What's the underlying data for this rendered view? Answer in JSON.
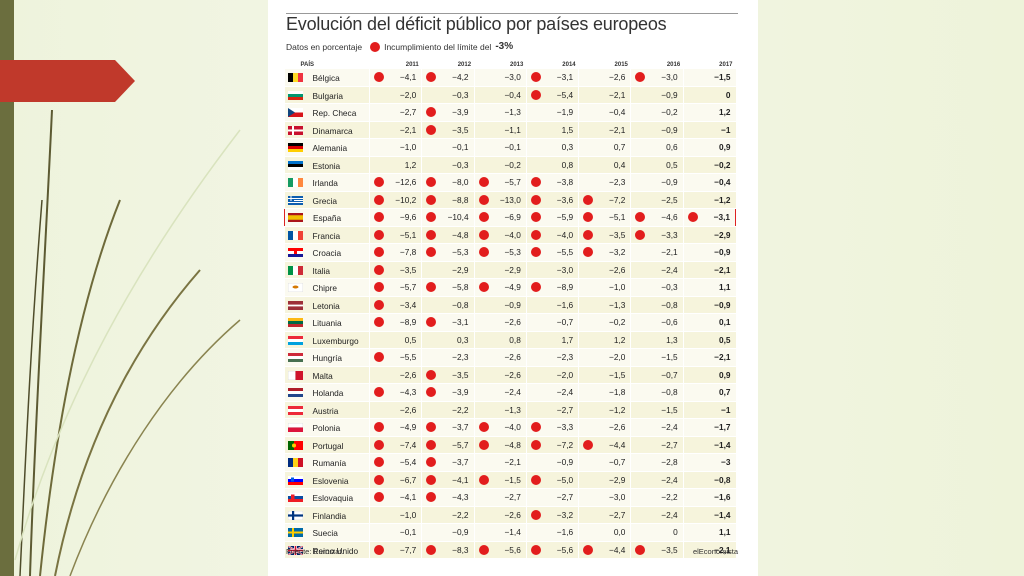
{
  "title": "Evolución del déficit público por países europeos",
  "legend": {
    "prefix": "Datos en porcentaje",
    "label": "Incumplimiento del límite del",
    "value": "-3%",
    "dot_color": "#e21d1d"
  },
  "columns": [
    "PAÍS",
    "2011",
    "2012",
    "2013",
    "2014",
    "2015",
    "2016",
    "2017"
  ],
  "rows": [
    {
      "country": "Bélgica",
      "flag": "be",
      "values": [
        "−4,1",
        "−4,2",
        "−3,0",
        "−3,1",
        "−2,6",
        "−3,0",
        "−1,5"
      ],
      "breach": [
        1,
        1,
        0,
        1,
        0,
        1,
        0
      ]
    },
    {
      "country": "Bulgaria",
      "flag": "bg",
      "values": [
        "−2,0",
        "−0,3",
        "−0,4",
        "−5,4",
        "−2,1",
        "−0,9",
        "0"
      ],
      "breach": [
        0,
        0,
        0,
        1,
        0,
        0,
        0
      ]
    },
    {
      "country": "Rep. Checa",
      "flag": "cz",
      "values": [
        "−2,7",
        "−3,9",
        "−1,3",
        "−1,9",
        "−0,4",
        "−0,2",
        "1,2"
      ],
      "breach": [
        0,
        1,
        0,
        0,
        0,
        0,
        0
      ]
    },
    {
      "country": "Dinamarca",
      "flag": "dk",
      "values": [
        "−2,1",
        "−3,5",
        "−1,1",
        "1,5",
        "−2,1",
        "−0,9",
        "−1"
      ],
      "breach": [
        0,
        1,
        0,
        0,
        0,
        0,
        0
      ]
    },
    {
      "country": "Alemania",
      "flag": "de",
      "values": [
        "−1,0",
        "−0,1",
        "−0,1",
        "0,3",
        "0,7",
        "0,6",
        "0,9"
      ],
      "breach": [
        0,
        0,
        0,
        0,
        0,
        0,
        0
      ]
    },
    {
      "country": "Estonia",
      "flag": "ee",
      "values": [
        "1,2",
        "−0,3",
        "−0,2",
        "0,8",
        "0,4",
        "0,5",
        "−0,2"
      ],
      "breach": [
        0,
        0,
        0,
        0,
        0,
        0,
        0
      ]
    },
    {
      "country": "Irlanda",
      "flag": "ie",
      "values": [
        "−12,6",
        "−8,0",
        "−5,7",
        "−3,8",
        "−2,3",
        "−0,9",
        "−0,4"
      ],
      "breach": [
        1,
        1,
        1,
        1,
        0,
        0,
        0
      ]
    },
    {
      "country": "Grecia",
      "flag": "gr",
      "values": [
        "−10,2",
        "−8,8",
        "−13,0",
        "−3,6",
        "−7,2",
        "−2,5",
        "−1,2"
      ],
      "breach": [
        1,
        1,
        1,
        1,
        1,
        0,
        0
      ]
    },
    {
      "country": "España",
      "flag": "es",
      "values": [
        "−9,6",
        "−10,4",
        "−6,9",
        "−5,9",
        "−5,1",
        "−4,6",
        "−3,1"
      ],
      "breach": [
        1,
        1,
        1,
        1,
        1,
        1,
        1
      ],
      "highlight": true
    },
    {
      "country": "Francia",
      "flag": "fr",
      "values": [
        "−5,1",
        "−4,8",
        "−4,0",
        "−4,0",
        "−3,5",
        "−3,3",
        "−2,9"
      ],
      "breach": [
        1,
        1,
        1,
        1,
        1,
        1,
        0
      ]
    },
    {
      "country": "Croacia",
      "flag": "hr",
      "values": [
        "−7,8",
        "−5,3",
        "−5,3",
        "−5,5",
        "−3,2",
        "−2,1",
        "−0,9"
      ],
      "breach": [
        1,
        1,
        1,
        1,
        1,
        0,
        0
      ]
    },
    {
      "country": "Italia",
      "flag": "it",
      "values": [
        "−3,5",
        "−2,9",
        "−2,9",
        "−3,0",
        "−2,6",
        "−2,4",
        "−2,1"
      ],
      "breach": [
        1,
        0,
        0,
        0,
        0,
        0,
        0
      ]
    },
    {
      "country": "Chipre",
      "flag": "cy",
      "values": [
        "−5,7",
        "−5,8",
        "−4,9",
        "−8,9",
        "−1,0",
        "−0,3",
        "1,1"
      ],
      "breach": [
        1,
        1,
        1,
        1,
        0,
        0,
        0
      ]
    },
    {
      "country": "Letonia",
      "flag": "lv",
      "values": [
        "−3,4",
        "−0,8",
        "−0,9",
        "−1,6",
        "−1,3",
        "−0,8",
        "−0,9"
      ],
      "breach": [
        1,
        0,
        0,
        0,
        0,
        0,
        0
      ]
    },
    {
      "country": "Lituania",
      "flag": "lt",
      "values": [
        "−8,9",
        "−3,1",
        "−2,6",
        "−0,7",
        "−0,2",
        "−0,6",
        "0,1"
      ],
      "breach": [
        1,
        1,
        0,
        0,
        0,
        0,
        0
      ]
    },
    {
      "country": "Luxemburgo",
      "flag": "lu",
      "values": [
        "0,5",
        "0,3",
        "0,8",
        "1,7",
        "1,2",
        "1,3",
        "0,5"
      ],
      "breach": [
        0,
        0,
        0,
        0,
        0,
        0,
        0
      ]
    },
    {
      "country": "Hungría",
      "flag": "hu",
      "values": [
        "−5,5",
        "−2,3",
        "−2,6",
        "−2,3",
        "−2,0",
        "−1,5",
        "−2,1"
      ],
      "breach": [
        1,
        0,
        0,
        0,
        0,
        0,
        0
      ]
    },
    {
      "country": "Malta",
      "flag": "mt",
      "values": [
        "−2,6",
        "−3,5",
        "−2,6",
        "−2,0",
        "−1,5",
        "−0,7",
        "0,9"
      ],
      "breach": [
        0,
        1,
        0,
        0,
        0,
        0,
        0
      ]
    },
    {
      "country": "Holanda",
      "flag": "nl",
      "values": [
        "−4,3",
        "−3,9",
        "−2,4",
        "−2,4",
        "−1,8",
        "−0,8",
        "0,7"
      ],
      "breach": [
        1,
        1,
        0,
        0,
        0,
        0,
        0
      ]
    },
    {
      "country": "Austria",
      "flag": "at",
      "values": [
        "−2,6",
        "−2,2",
        "−1,3",
        "−2,7",
        "−1,2",
        "−1,5",
        "−1"
      ],
      "breach": [
        0,
        0,
        0,
        0,
        0,
        0,
        0
      ]
    },
    {
      "country": "Polonia",
      "flag": "pl",
      "values": [
        "−4,9",
        "−3,7",
        "−4,0",
        "−3,3",
        "−2,6",
        "−2,4",
        "−1,7"
      ],
      "breach": [
        1,
        1,
        1,
        1,
        0,
        0,
        0
      ]
    },
    {
      "country": "Portugal",
      "flag": "pt",
      "values": [
        "−7,4",
        "−5,7",
        "−4,8",
        "−7,2",
        "−4,4",
        "−2,7",
        "−1,4"
      ],
      "breach": [
        1,
        1,
        1,
        1,
        1,
        0,
        0
      ]
    },
    {
      "country": "Rumanía",
      "flag": "ro",
      "values": [
        "−5,4",
        "−3,7",
        "−2,1",
        "−0,9",
        "−0,7",
        "−2,8",
        "−3"
      ],
      "breach": [
        1,
        1,
        0,
        0,
        0,
        0,
        0
      ]
    },
    {
      "country": "Eslovenia",
      "flag": "si",
      "values": [
        "−6,7",
        "−4,1",
        "−1,5",
        "−5,0",
        "−2,9",
        "−2,4",
        "−0,8"
      ],
      "breach": [
        1,
        1,
        1,
        1,
        0,
        0,
        0
      ]
    },
    {
      "country": "Eslovaquia",
      "flag": "sk",
      "values": [
        "−4,1",
        "−4,3",
        "−2,7",
        "−2,7",
        "−3,0",
        "−2,2",
        "−1,6"
      ],
      "breach": [
        1,
        1,
        0,
        0,
        0,
        0,
        0
      ]
    },
    {
      "country": "Finlandia",
      "flag": "fi",
      "values": [
        "−1,0",
        "−2,2",
        "−2,6",
        "−3,2",
        "−2,7",
        "−2,4",
        "−1,4"
      ],
      "breach": [
        0,
        0,
        0,
        1,
        0,
        0,
        0
      ]
    },
    {
      "country": "Suecia",
      "flag": "se",
      "values": [
        "−0,1",
        "−0,9",
        "−1,4",
        "−1,6",
        "0,0",
        "0",
        "1,1"
      ],
      "breach": [
        0,
        0,
        0,
        0,
        0,
        0,
        0
      ]
    },
    {
      "country": "Reino Unido",
      "flag": "gb",
      "values": [
        "−7,7",
        "−8,3",
        "−5,6",
        "−5,6",
        "−4,4",
        "−3,5",
        "−2,1"
      ],
      "breach": [
        1,
        1,
        1,
        1,
        1,
        1,
        0
      ]
    }
  ],
  "source": "Fuente: Eurostat.",
  "brand": "elEconomista",
  "colors": {
    "accent_red": "#e21d1d",
    "slide_tab": "#c0392b",
    "slide_bar": "#6b6e3e",
    "row_alt": "#f6f4dc"
  }
}
